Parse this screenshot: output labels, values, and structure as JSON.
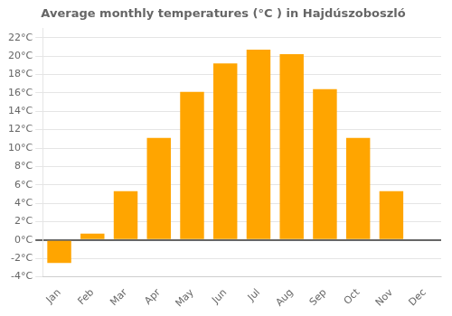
{
  "chart_data": {
    "type": "bar",
    "title": "Average monthly temperatures (°C ) in Hajdúszoboszló",
    "categories": [
      "Jan",
      "Feb",
      "Mar",
      "Apr",
      "May",
      "Jun",
      "Jul",
      "Aug",
      "Sep",
      "Oct",
      "Nov",
      "Dec"
    ],
    "values": [
      -2.5,
      0.7,
      5.3,
      11.1,
      16.1,
      19.2,
      20.7,
      20.2,
      16.4,
      11.1,
      5.3,
      0.0
    ],
    "color": "#FFA500",
    "ylim": [
      -4,
      23
    ],
    "yticks": [
      {
        "value": -4,
        "label": "-4°C"
      },
      {
        "value": -2,
        "label": "-2°C"
      },
      {
        "value": 0,
        "label": "0°C"
      },
      {
        "value": 2,
        "label": "2°C"
      },
      {
        "value": 4,
        "label": "4°C"
      },
      {
        "value": 6,
        "label": "6°C"
      },
      {
        "value": 8,
        "label": "8°C"
      },
      {
        "value": 10,
        "label": "10°C"
      },
      {
        "value": 12,
        "label": "12°C"
      },
      {
        "value": 14,
        "label": "14°C"
      },
      {
        "value": 16,
        "label": "16°C"
      },
      {
        "value": 18,
        "label": "18°C"
      },
      {
        "value": 20,
        "label": "20°C"
      },
      {
        "value": 22,
        "label": "22°C"
      }
    ],
    "grid": true
  }
}
